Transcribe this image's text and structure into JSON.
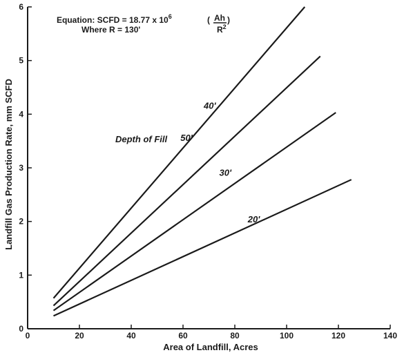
{
  "chart_data": {
    "type": "line",
    "xlabel": "Area of Landfill, Acres",
    "ylabel": "Landfill Gas Production Rate, mm SCFD",
    "xlim": [
      0,
      140
    ],
    "ylim": [
      0,
      6
    ],
    "x_ticks": [
      "0",
      "20",
      "40",
      "60",
      "80",
      "100",
      "120",
      "140"
    ],
    "y_ticks": [
      "0",
      "1",
      "2",
      "3",
      "4",
      "5",
      "6"
    ],
    "grid": false,
    "annotations": {
      "equation_prefix": "Equation: SCFD = 18.77 x 10",
      "equation_exponent": "6",
      "equation_numerator": "Ah",
      "equation_denominator": "R",
      "equation_denominator_exponent": "2",
      "where_line": "Where R = 130'",
      "fill_label": "Depth of Fill"
    },
    "series": [
      {
        "name": "50'",
        "x": [
          10,
          107
        ],
        "y": [
          0.57,
          6.0
        ]
      },
      {
        "name": "40'",
        "x": [
          10,
          113
        ],
        "y": [
          0.43,
          5.08
        ]
      },
      {
        "name": "30'",
        "x": [
          10,
          119
        ],
        "y": [
          0.34,
          4.03
        ]
      },
      {
        "name": "20'",
        "x": [
          10,
          125
        ],
        "y": [
          0.24,
          2.78
        ]
      }
    ]
  }
}
